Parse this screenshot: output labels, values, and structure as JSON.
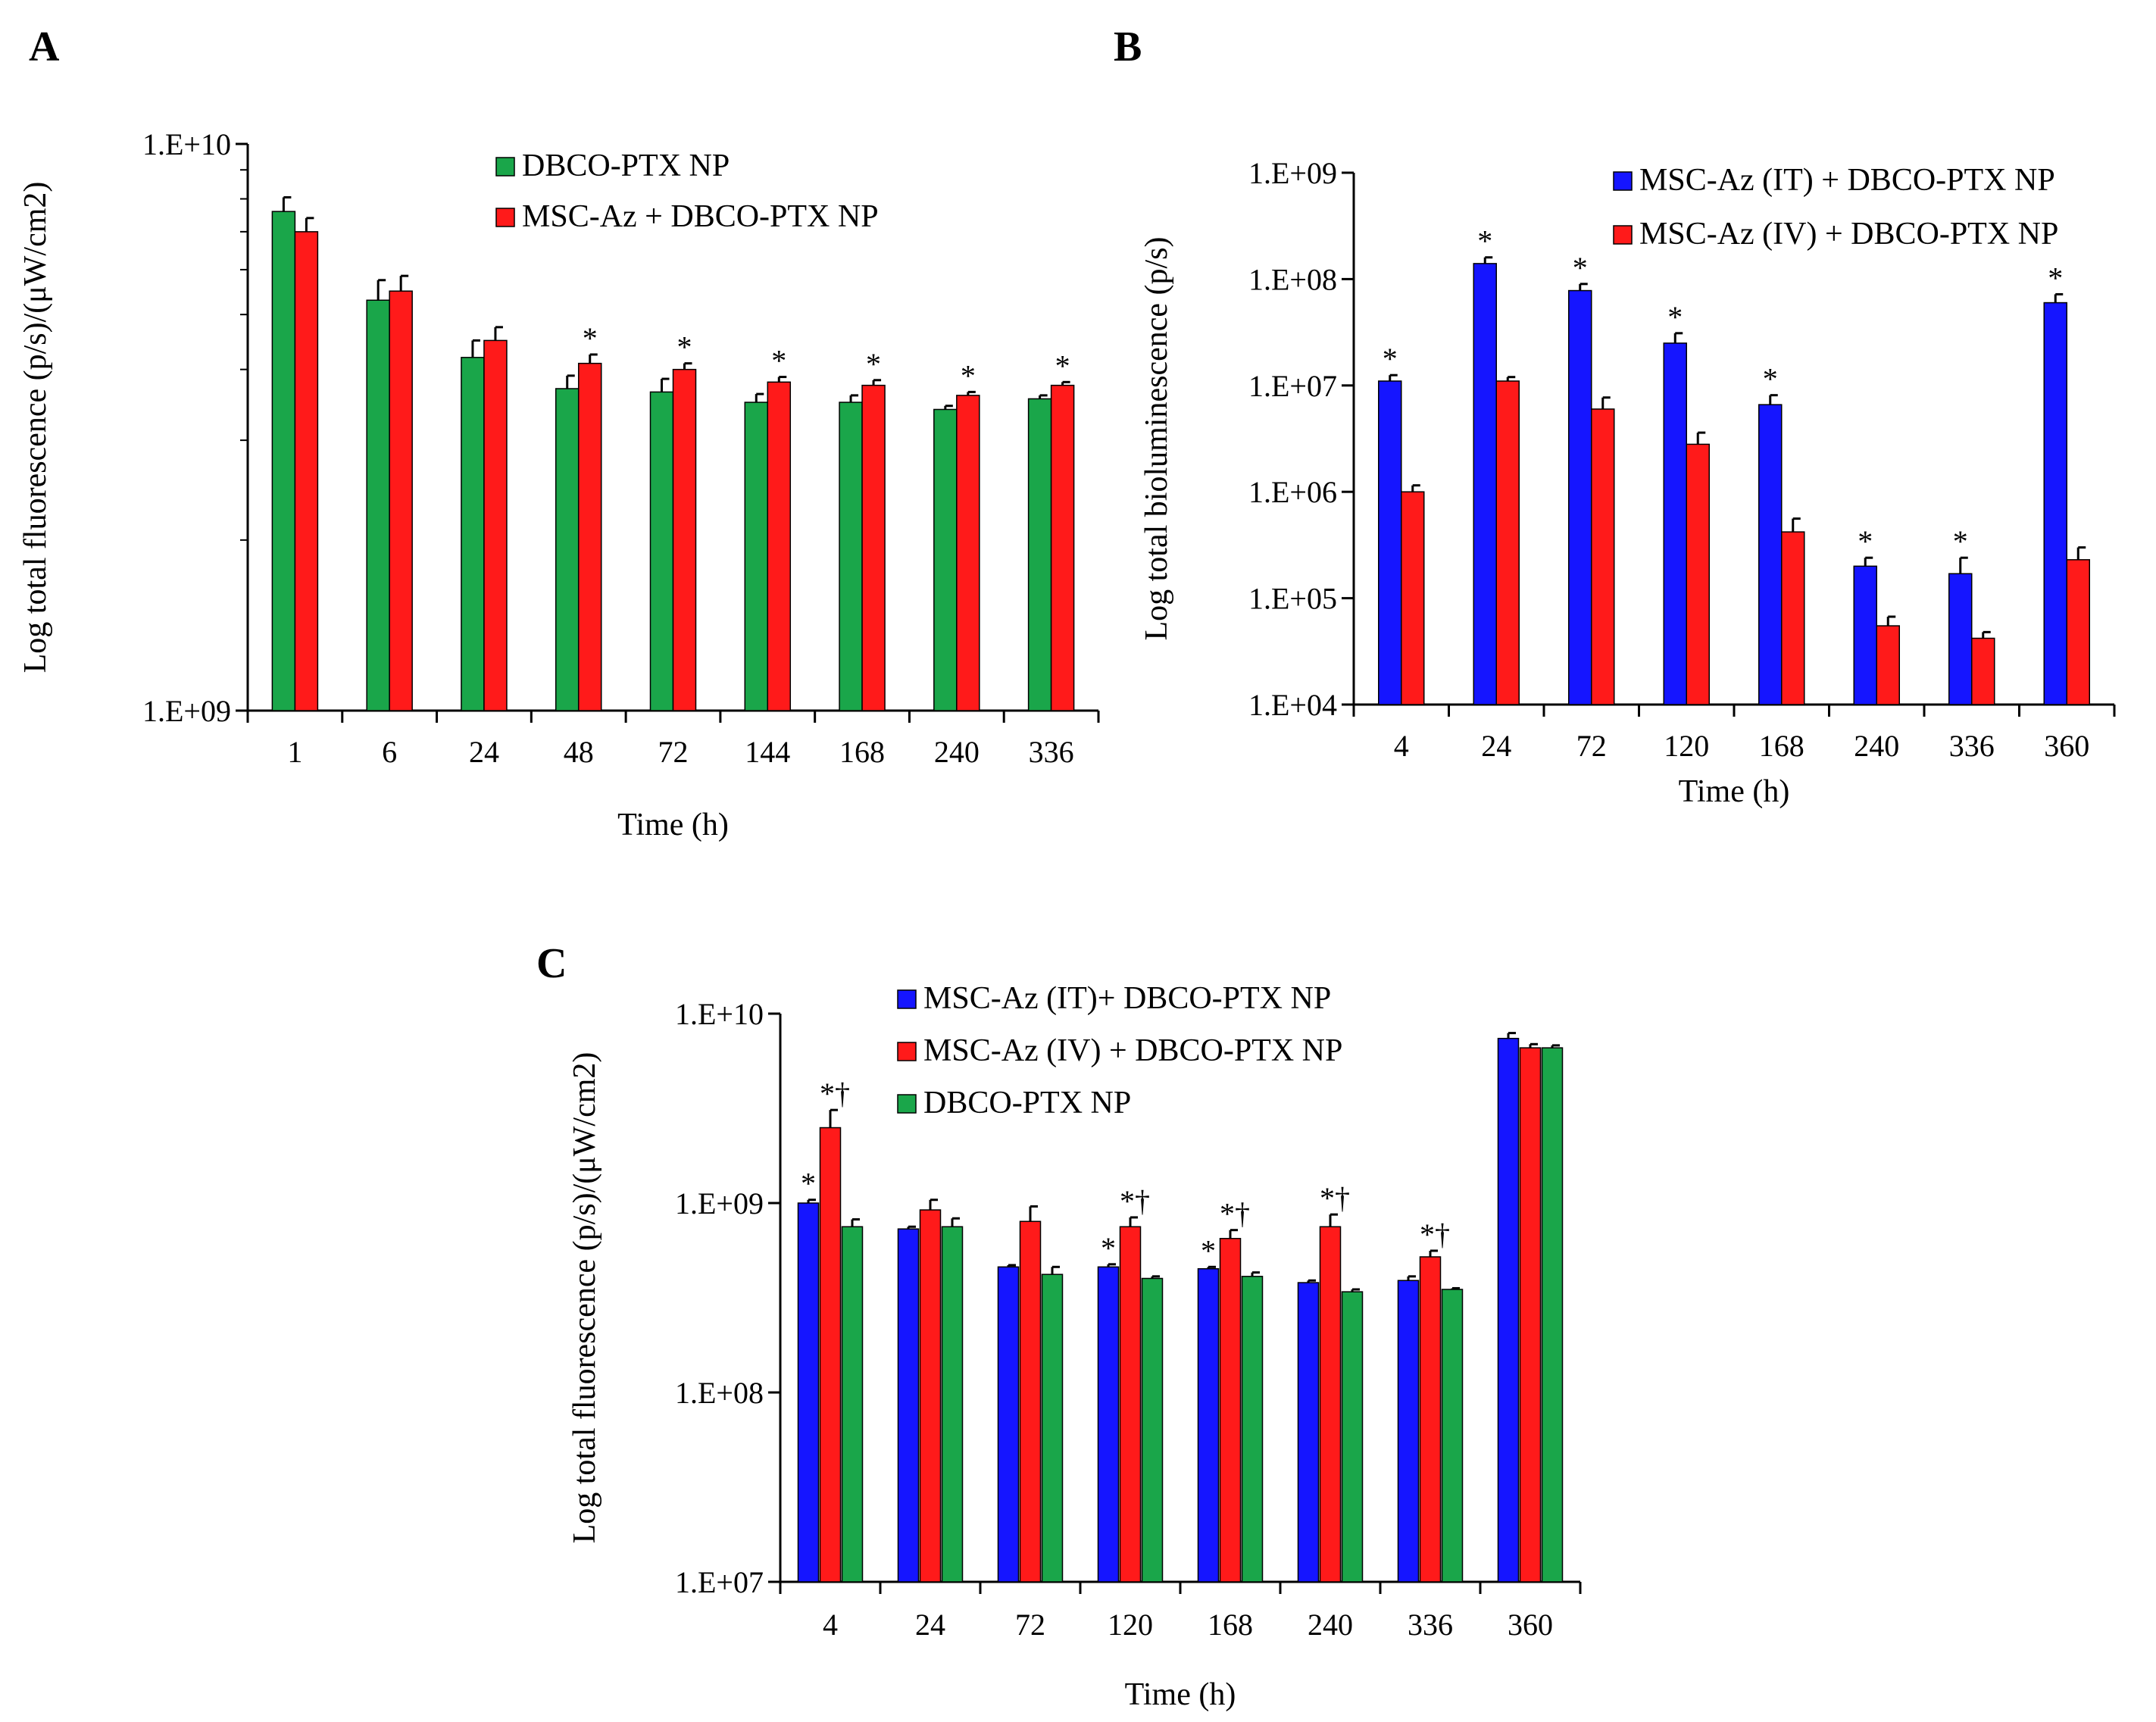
{
  "chart_data": [
    {
      "panel": "A",
      "type": "bar",
      "scale": "log",
      "title": "",
      "xlabel": "Time (h)",
      "ylabel": "Log total fluorescence (p/s)/(μW/cm2)",
      "ylim": [
        1000000000,
        10000000000
      ],
      "yticks": [
        {
          "value": 1000000000,
          "label": "1.E+09"
        },
        {
          "value": 10000000000,
          "label": "1.E+10"
        }
      ],
      "categories": [
        "1",
        "6",
        "24",
        "48",
        "72",
        "144",
        "168",
        "240",
        "336"
      ],
      "series": [
        {
          "name": "DBCO-PTX NP",
          "color": "#1aa64a",
          "values": [
            7600000000.0,
            5300000000.0,
            4200000000.0,
            3700000000.0,
            3650000000.0,
            3500000000.0,
            3500000000.0,
            3400000000.0,
            3550000000.0
          ],
          "errors": [
            450000000.0,
            450000000.0,
            300000000.0,
            200000000.0,
            200000000.0,
            120000000.0,
            100000000.0,
            50000000.0,
            50000000.0
          ]
        },
        {
          "name": "MSC-Az + DBCO-PTX NP",
          "color": "#ff1a1a",
          "values": [
            7000000000.0,
            5500000000.0,
            4500000000.0,
            4100000000.0,
            4000000000.0,
            3800000000.0,
            3750000000.0,
            3600000000.0,
            3750000000.0
          ],
          "errors": [
            400000000.0,
            350000000.0,
            250000000.0,
            150000000.0,
            100000000.0,
            80000000.0,
            80000000.0,
            50000000.0,
            50000000.0
          ]
        }
      ],
      "annotations": [
        {
          "category": "48",
          "series": 1,
          "text": "*"
        },
        {
          "category": "72",
          "series": 1,
          "text": "*"
        },
        {
          "category": "144",
          "series": 1,
          "text": "*"
        },
        {
          "category": "168",
          "series": 1,
          "text": "*"
        },
        {
          "category": "240",
          "series": 1,
          "text": "*"
        },
        {
          "category": "336",
          "series": 1,
          "text": "*"
        }
      ]
    },
    {
      "panel": "B",
      "type": "bar",
      "scale": "log",
      "title": "",
      "xlabel": "Time (h)",
      "ylabel": "Log total bioluminescence (p/s)",
      "ylim": [
        10000,
        1000000000
      ],
      "yticks": [
        {
          "value": 10000,
          "label": "1.E+04"
        },
        {
          "value": 100000,
          "label": "1.E+05"
        },
        {
          "value": 1000000,
          "label": "1.E+06"
        },
        {
          "value": 10000000,
          "label": "1.E+07"
        },
        {
          "value": 100000000,
          "label": "1.E+08"
        },
        {
          "value": 1000000000,
          "label": "1.E+09"
        }
      ],
      "categories": [
        "4",
        "24",
        "72",
        "120",
        "168",
        "240",
        "336",
        "360"
      ],
      "series": [
        {
          "name": "MSC-Az (IT) + DBCO-PTX NP",
          "color": "#1515ff",
          "values": [
            11000000.0,
            140000000.0,
            78000000.0,
            25000000.0,
            6600000.0,
            200000.0,
            170000.0,
            60000000.0
          ],
          "errors": [
            1500000.0,
            20000000.0,
            12000000.0,
            6000000.0,
            1500000.0,
            40000.0,
            70000.0,
            12000000.0
          ]
        },
        {
          "name": "MSC-Az (IV) + DBCO-PTX NP",
          "color": "#ff1a1a",
          "values": [
            1000000.0,
            11000000.0,
            6000000.0,
            2800000.0,
            420000.0,
            55000.0,
            42000.0,
            230000.0
          ],
          "errors": [
            150000.0,
            1000000.0,
            1700000.0,
            800000.0,
            140000.0,
            12000.0,
            6000.0,
            70000.0
          ]
        }
      ],
      "annotations": [
        {
          "category": "4",
          "series": 0,
          "text": "*"
        },
        {
          "category": "24",
          "series": 0,
          "text": "*"
        },
        {
          "category": "72",
          "series": 0,
          "text": "*"
        },
        {
          "category": "120",
          "series": 0,
          "text": "*"
        },
        {
          "category": "168",
          "series": 0,
          "text": "*"
        },
        {
          "category": "240",
          "series": 0,
          "text": "*"
        },
        {
          "category": "336",
          "series": 0,
          "text": "*"
        },
        {
          "category": "360",
          "series": 0,
          "text": "*"
        }
      ]
    },
    {
      "panel": "C",
      "type": "bar",
      "scale": "log",
      "title": "",
      "xlabel": "Time (h)",
      "ylabel": "Log total fluorescence (p/s)/(μW/cm2)",
      "ylim": [
        10000000,
        10000000000
      ],
      "yticks": [
        {
          "value": 10000000,
          "label": "1.E+07"
        },
        {
          "value": 100000000,
          "label": "1.E+08"
        },
        {
          "value": 1000000000,
          "label": "1.E+09"
        },
        {
          "value": 10000000000,
          "label": "1.E+10"
        }
      ],
      "categories": [
        "4",
        "24",
        "72",
        "120",
        "168",
        "240",
        "336",
        "360"
      ],
      "series": [
        {
          "name": "MSC-Az (IT)+ DBCO-PTX NP",
          "color": "#1515ff",
          "values": [
            1000000000.0,
            730000000.0,
            460000000.0,
            460000000.0,
            450000000.0,
            380000000.0,
            390000000.0,
            7400000000.0
          ],
          "errors": [
            40000000.0,
            20000000.0,
            10000000.0,
            15000000.0,
            10000000.0,
            10000000.0,
            20000000.0,
            500000000.0
          ]
        },
        {
          "name": "MSC-Az (IV) + DBCO-PTX NP",
          "color": "#ff1a1a",
          "values": [
            2500000000.0,
            920000000.0,
            800000000.0,
            750000000.0,
            650000000.0,
            750000000.0,
            520000000.0,
            6600000000.0
          ],
          "errors": [
            600000000.0,
            120000000.0,
            160000000.0,
            90000000.0,
            70000000.0,
            120000000.0,
            40000000.0,
            300000000.0
          ]
        },
        {
          "name": "DBCO-PTX NP",
          "color": "#1aa64a",
          "values": [
            750000000.0,
            750000000.0,
            420000000.0,
            400000000.0,
            410000000.0,
            340000000.0,
            350000000.0,
            6600000000.0
          ],
          "errors": [
            70000000.0,
            80000000.0,
            40000000.0,
            10000000.0,
            20000000.0,
            10000000.0,
            5000000.0,
            200000000.0
          ]
        }
      ],
      "annotations": [
        {
          "category": "4",
          "series": 0,
          "text": "*"
        },
        {
          "category": "4",
          "series": 1,
          "text": "*†"
        },
        {
          "category": "120",
          "series": 0,
          "text": "*"
        },
        {
          "category": "120",
          "series": 1,
          "text": "*†"
        },
        {
          "category": "168",
          "series": 0,
          "text": "*"
        },
        {
          "category": "168",
          "series": 1,
          "text": "*†"
        },
        {
          "category": "240",
          "series": 1,
          "text": "*†"
        },
        {
          "category": "336",
          "series": 1,
          "text": "*†"
        }
      ]
    }
  ]
}
